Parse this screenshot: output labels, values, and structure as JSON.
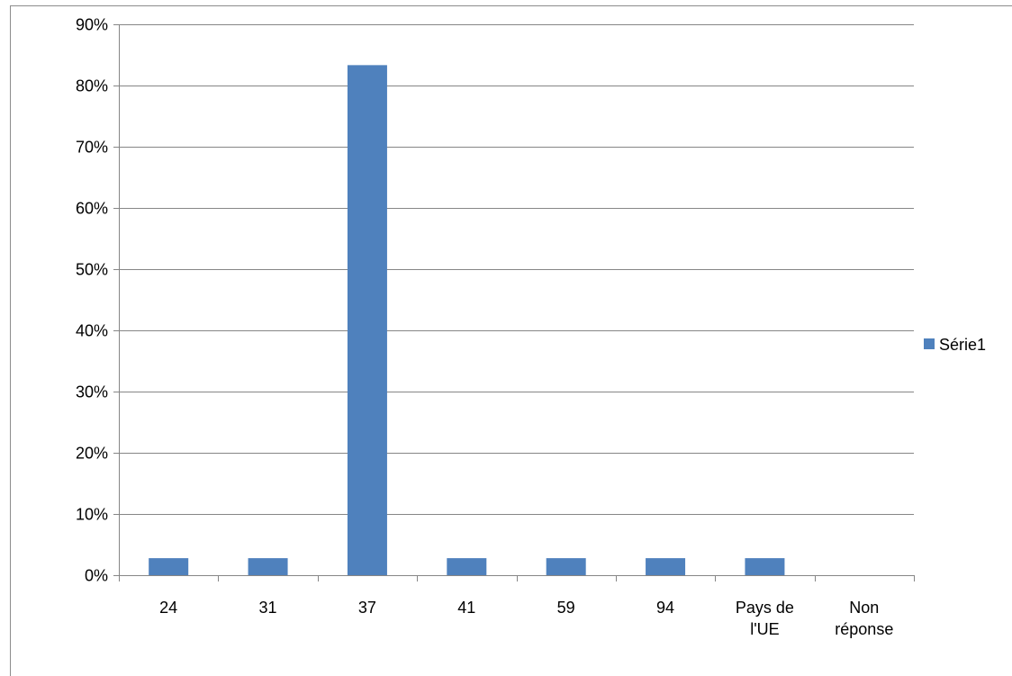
{
  "chart_data": {
    "type": "bar",
    "categories": [
      "24",
      "31",
      "37",
      "41",
      "59",
      "94",
      "Pays de l'UE",
      "Non réponse"
    ],
    "category_lines": [
      [
        "24"
      ],
      [
        "31"
      ],
      [
        "37"
      ],
      [
        "41"
      ],
      [
        "59"
      ],
      [
        "94"
      ],
      [
        "Pays de",
        "l'UE"
      ],
      [
        "Non",
        "réponse"
      ]
    ],
    "series": [
      {
        "name": "Série1",
        "values": [
          0.0278,
          0.0278,
          0.8333,
          0.0278,
          0.0278,
          0.0278,
          0.0278,
          0
        ]
      }
    ],
    "ylim": [
      0,
      0.9
    ],
    "yticks": [
      "0%",
      "10%",
      "20%",
      "30%",
      "40%",
      "50%",
      "60%",
      "70%",
      "80%",
      "90%"
    ],
    "title": "",
    "xlabel": "",
    "ylabel": "",
    "grid": true,
    "legend_position": "right",
    "colors": {
      "bar": "#4f81bd",
      "grid": "#868686",
      "axis": "#868686"
    }
  }
}
